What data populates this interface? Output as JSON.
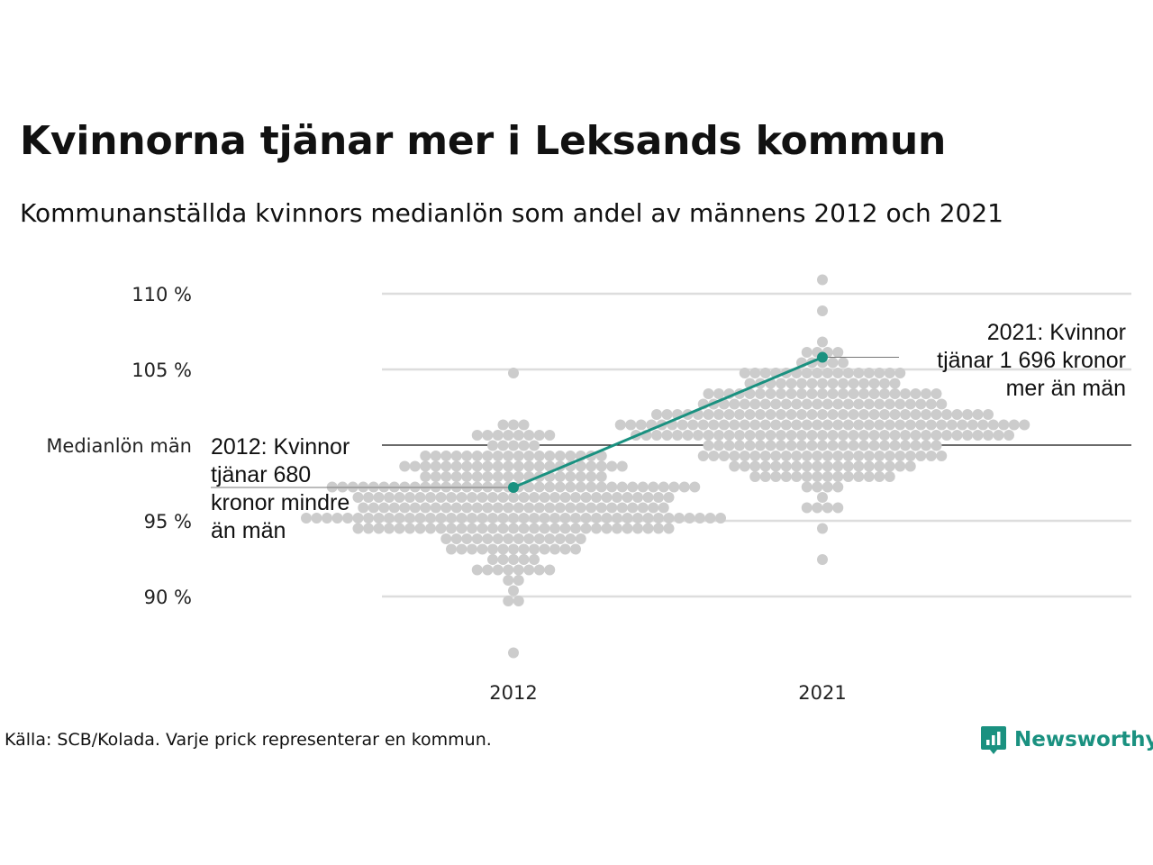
{
  "title": "Kvinnorna tjänar mer i Leksands kommun",
  "subtitle": "Kommunanställda kvinnors medianlön som andel av männens 2012 och 2021",
  "source": "Källa: SCB/Kolada. Varje prick representerar en kommun.",
  "brand": {
    "name": "Newsworthy",
    "color": "#1a9180"
  },
  "colors": {
    "dots": "#cccccc",
    "highlight": "#1a9180",
    "grid": "#dddddd",
    "reference_line": "#111111"
  },
  "chart_data": {
    "type": "scatter",
    "subtype": "beeswarm",
    "categories": [
      "2012",
      "2021"
    ],
    "ylim": [
      85,
      112
    ],
    "y_ticks": [
      {
        "value": 90,
        "label": "90 %"
      },
      {
        "value": 95,
        "label": "95 %"
      },
      {
        "value": 100,
        "label": "Medianlön män"
      },
      {
        "value": 105,
        "label": "105 %"
      },
      {
        "value": 110,
        "label": "110 %"
      }
    ],
    "reference_line": {
      "value": 100,
      "label": "Medianlön män"
    },
    "grid": true,
    "distributions": [
      {
        "category": "2012",
        "count": 290,
        "min": 86.6,
        "max": 105.1,
        "median": 96.2,
        "spread": 2.3
      },
      {
        "category": "2021",
        "count": 290,
        "min": 92.6,
        "max": 111.2,
        "median": 101.4,
        "spread": 2.2
      }
    ],
    "highlight": {
      "name": "Leksand",
      "points": [
        {
          "x": "2012",
          "y": 97.2
        },
        {
          "x": "2021",
          "y": 105.8
        }
      ]
    },
    "annotations": [
      {
        "x": "2012",
        "lines": [
          "2012: Kvinnor",
          "tjänar 680",
          "kronor mindre",
          "än män"
        ]
      },
      {
        "x": "2021",
        "lines": [
          "2021: Kvinnor",
          "tjänar 1 696 kronor",
          "mer än män"
        ]
      }
    ]
  }
}
